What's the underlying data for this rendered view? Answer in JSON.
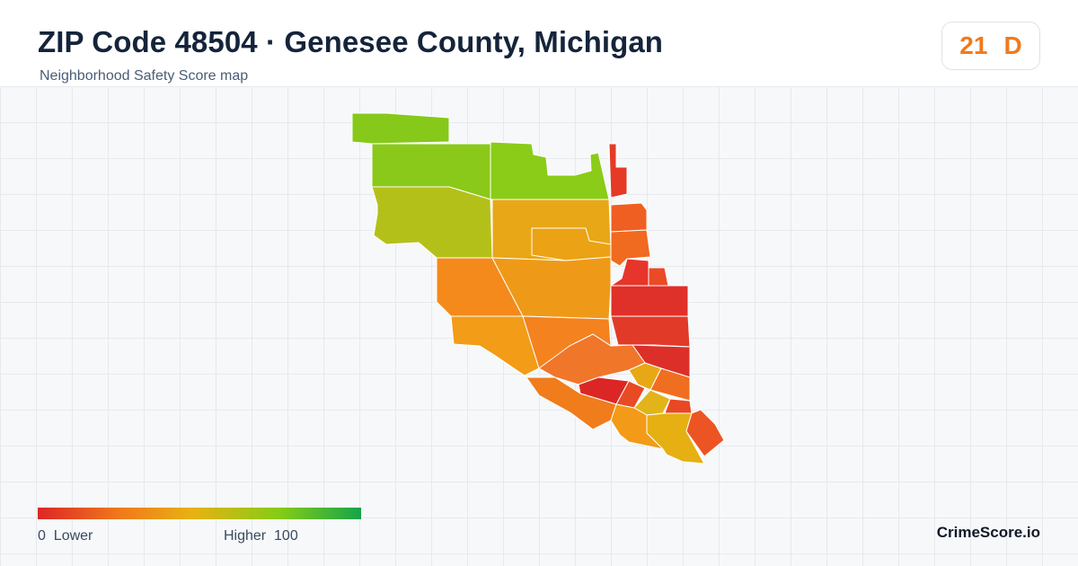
{
  "header": {
    "title": "ZIP Code 48504 · Genesee County, Michigan",
    "subtitle": "Neighborhood Safety Score map"
  },
  "score": {
    "value": "21",
    "grade": "D"
  },
  "legend": {
    "low_value": "0",
    "low_label": "Lower",
    "high_label": "Higher",
    "high_value": "100",
    "colors": [
      "#dc2626",
      "#f0781c",
      "#e8b213",
      "#84cc16",
      "#16a34a"
    ]
  },
  "brand": "CrimeScore.io",
  "colors": {
    "title": "#15243b",
    "grade": "#f07a1c",
    "grid_background": "#f6f8fa"
  },
  "map": {
    "regions": [
      {
        "name": "region-nw-top",
        "color": "#86c91a"
      },
      {
        "name": "region-north-west",
        "color": "#8ac91a"
      },
      {
        "name": "region-north-center",
        "color": "#8acc18"
      },
      {
        "name": "region-west",
        "color": "#b4c01a"
      },
      {
        "name": "region-center-north",
        "color": "#e8a716"
      },
      {
        "name": "region-center-north-sub",
        "color": "#eba214"
      },
      {
        "name": "region-southwest",
        "color": "#f48a1c"
      },
      {
        "name": "region-center",
        "color": "#ee9a18"
      },
      {
        "name": "region-south-west",
        "color": "#f29c18"
      },
      {
        "name": "region-south-center",
        "color": "#f4821e"
      },
      {
        "name": "region-east-strip",
        "color": "#e43a26"
      },
      {
        "name": "region-east-1",
        "color": "#ef5f22"
      },
      {
        "name": "region-east-2",
        "color": "#f06a20"
      },
      {
        "name": "region-east-3",
        "color": "#e6352a"
      },
      {
        "name": "region-east-4",
        "color": "#e0302a"
      },
      {
        "name": "region-east-5",
        "color": "#e23a28"
      },
      {
        "name": "region-east-6",
        "color": "#ea4a26"
      },
      {
        "name": "region-east-7",
        "color": "#dc2f2a"
      },
      {
        "name": "region-south-1",
        "color": "#f0762a"
      },
      {
        "name": "region-south-2",
        "color": "#e8a816"
      },
      {
        "name": "region-south-3",
        "color": "#dc2626"
      },
      {
        "name": "region-south-4",
        "color": "#e84a24"
      },
      {
        "name": "region-south-5",
        "color": "#f06e20"
      },
      {
        "name": "region-south-6",
        "color": "#e2b41a"
      },
      {
        "name": "region-south-7",
        "color": "#f07c1c"
      },
      {
        "name": "region-south-8",
        "color": "#f39a18"
      },
      {
        "name": "region-south-9",
        "color": "#e84824"
      },
      {
        "name": "region-south-10",
        "color": "#e6b012"
      },
      {
        "name": "region-south-tip",
        "color": "#ec5424"
      }
    ]
  }
}
